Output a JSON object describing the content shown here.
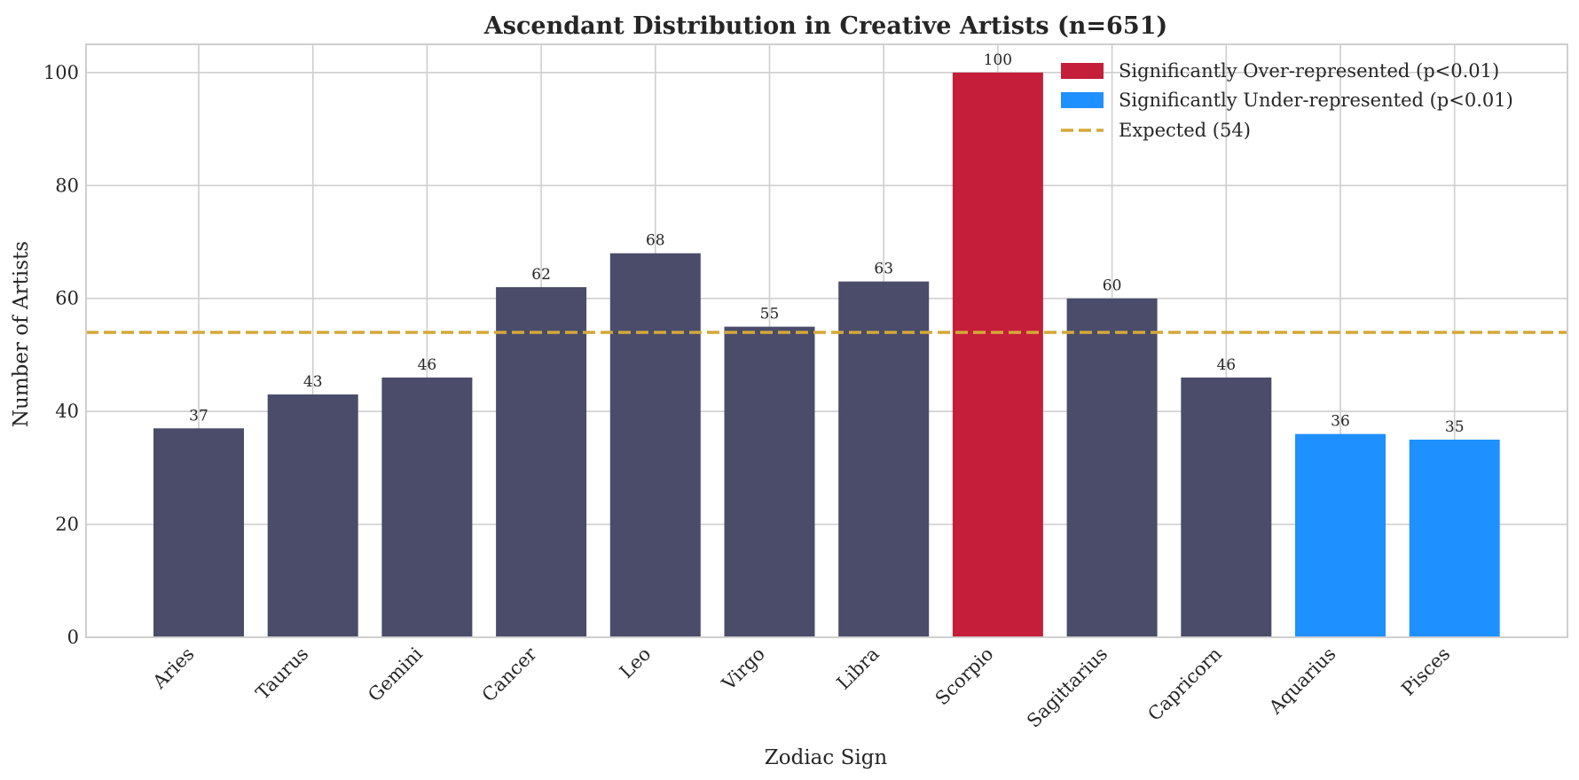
{
  "chart_data": {
    "type": "bar",
    "title": "Ascendant Distribution in Creative Artists (n=651)",
    "xlabel": "Zodiac Sign",
    "ylabel": "Number of Artists",
    "categories": [
      "Aries",
      "Taurus",
      "Gemini",
      "Cancer",
      "Leo",
      "Virgo",
      "Libra",
      "Scorpio",
      "Sagittarius",
      "Capricorn",
      "Aquarius",
      "Pisces"
    ],
    "values": [
      37,
      43,
      46,
      62,
      68,
      55,
      63,
      100,
      60,
      46,
      36,
      35
    ],
    "bar_status": [
      "normal",
      "normal",
      "normal",
      "normal",
      "normal",
      "normal",
      "normal",
      "over",
      "normal",
      "normal",
      "under",
      "under"
    ],
    "expected": 54,
    "ylim": [
      0,
      105
    ],
    "yticks": [
      0,
      20,
      40,
      60,
      80,
      100
    ],
    "grid": true,
    "legend_position": "upper right",
    "legend": [
      {
        "label": "Significantly Over-represented (p<0.01)",
        "type": "patch",
        "color": "#c41e3a"
      },
      {
        "label": "Significantly Under-represented (p<0.01)",
        "type": "patch",
        "color": "#1e90ff"
      },
      {
        "label": "Expected (54)",
        "type": "dashed-line",
        "color": "#d4a838"
      }
    ],
    "colors": {
      "normal": "#4a4c6a",
      "over": "#c41e3a",
      "under": "#1e90ff",
      "expected": "#d4a838"
    }
  }
}
